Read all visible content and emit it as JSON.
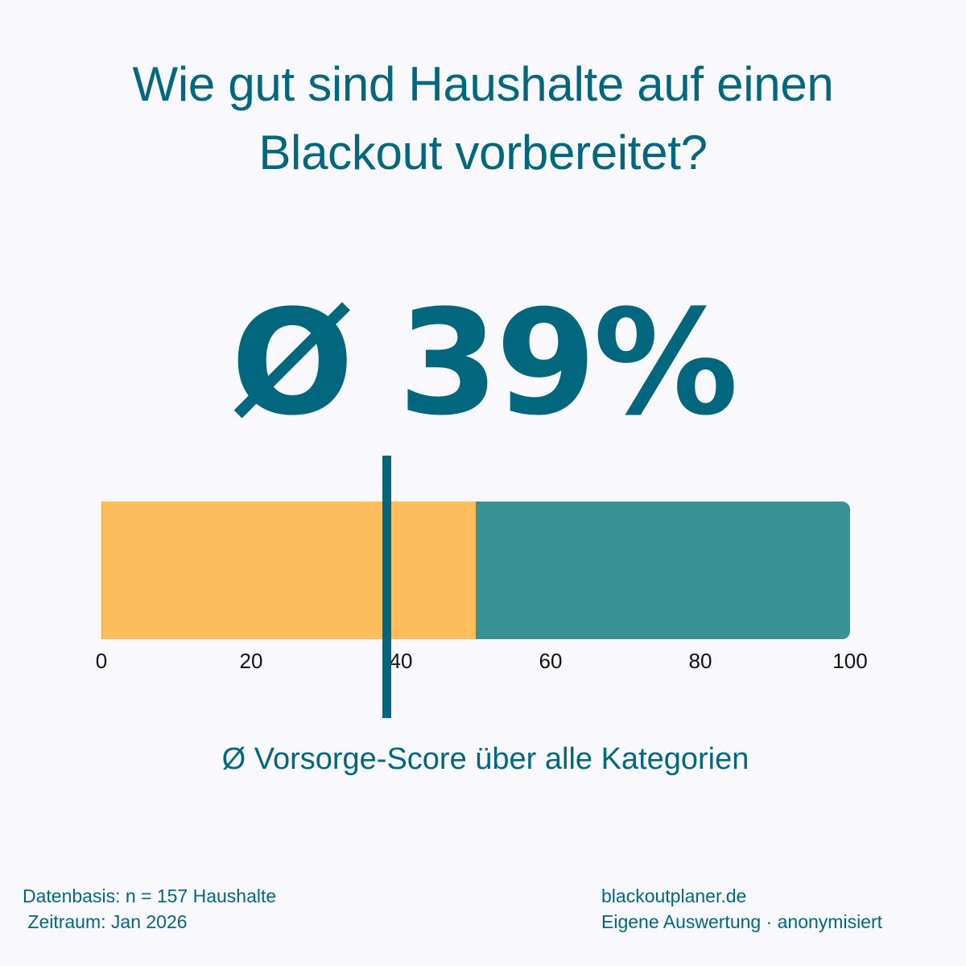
{
  "title": {
    "line1": "Wie gut sind Haushalte auf einen",
    "line2": "Blackout vorbereitet?"
  },
  "headline_value": "Ø 39%",
  "subtitle": "Ø Vorsorge-Score über alle Kategorien",
  "footer": {
    "left": {
      "line1": "Datenbasis: n = 157 Haushalte",
      "line2": " Zeitraum: Jan 2026"
    },
    "right": {
      "line1": "blackoutplaner.de",
      "line2": "Eigene Auswertung · anonymisiert"
    }
  },
  "colors": {
    "text": "#00677f",
    "background": "#f8f8fd",
    "segment_low": "#fdbd5c",
    "segment_high": "#389192",
    "marker": "#00677f",
    "tick_text": "#111111"
  },
  "chart_data": {
    "type": "bar",
    "orientation": "horizontal",
    "title": "Wie gut sind Haushalte auf einen Blackout vorbereitet?",
    "xlabel": "Ø Vorsorge-Score über alle Kategorien",
    "ylabel": "",
    "xlim": [
      0,
      100
    ],
    "x_ticks": [
      0,
      20,
      40,
      60,
      80,
      100
    ],
    "grid": false,
    "legend": null,
    "segments": [
      {
        "name": "low",
        "start": 0,
        "end": 50,
        "color": "#fdbd5c"
      },
      {
        "name": "high",
        "start": 50,
        "end": 100,
        "color": "#389192"
      }
    ],
    "marker": {
      "label": "Ø",
      "value": 39,
      "color": "#00677f"
    },
    "annotation": "Ø 39%",
    "sample_size": 157,
    "period": "Jan 2026"
  }
}
